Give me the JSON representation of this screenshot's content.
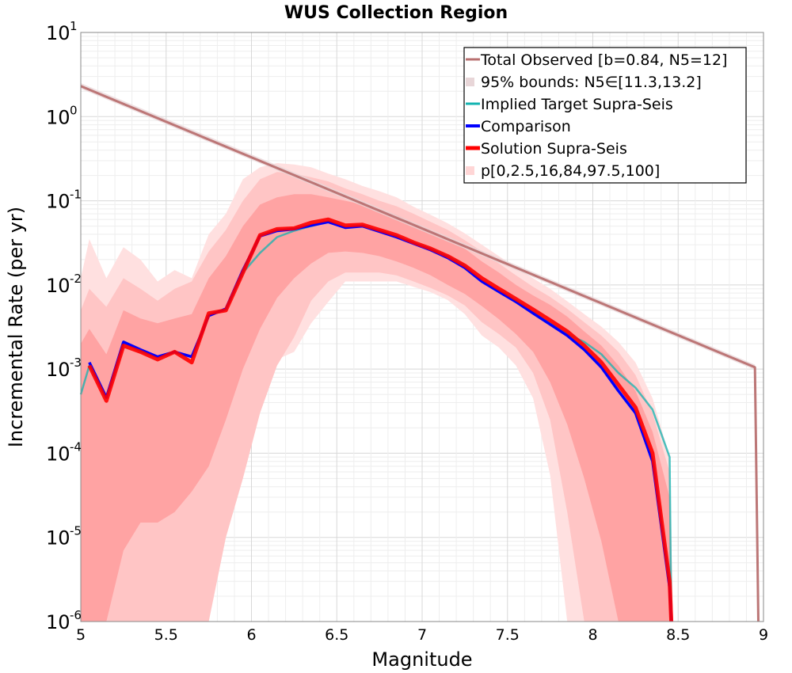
{
  "chart_data": {
    "type": "line",
    "title": "WUS Collection Region",
    "xlabel": "Magnitude",
    "ylabel": "Incremental Rate (per yr)",
    "xlim": [
      5,
      9
    ],
    "ylim": [
      1e-06,
      10
    ],
    "yscale": "log",
    "grid": true,
    "legend_position": "top-right",
    "x_ticks": [
      "5",
      "5.5",
      "6",
      "6.5",
      "7",
      "7.5",
      "8",
      "8.5",
      "9"
    ],
    "y_ticks": [
      {
        "base": "10",
        "exp": "-6"
      },
      {
        "base": "10",
        "exp": "-5"
      },
      {
        "base": "10",
        "exp": "-4"
      },
      {
        "base": "10",
        "exp": "-3"
      },
      {
        "base": "10",
        "exp": "-2"
      },
      {
        "base": "10",
        "exp": "-1"
      },
      {
        "base": "10",
        "exp": "0"
      },
      {
        "base": "10",
        "exp": "1"
      }
    ],
    "series": [
      {
        "name": "Total Observed [b=0.84, N5=12]",
        "kind": "line",
        "color": "#b87070",
        "points": [
          [
            5.0,
            2.3
          ],
          [
            8.95,
            0.00105
          ],
          [
            8.97,
            1e-06
          ]
        ]
      },
      {
        "name": "95% bounds: N5∈[11.3,13.2]",
        "kind": "band",
        "color": "#e8d6d8",
        "lower": [
          [
            5.0,
            2.15
          ],
          [
            8.95,
            0.00098
          ]
        ],
        "upper": [
          [
            5.0,
            2.5
          ],
          [
            8.95,
            0.00113
          ]
        ]
      },
      {
        "name": "Implied Target Supra-Seis",
        "kind": "line",
        "color": "#12b3b0",
        "points": [
          [
            5.0,
            0.0005
          ],
          [
            5.05,
            0.0011
          ],
          [
            5.15,
            0.00046
          ],
          [
            5.25,
            0.0021
          ],
          [
            5.35,
            0.0016
          ],
          [
            5.45,
            0.0014
          ],
          [
            5.55,
            0.0016
          ],
          [
            5.65,
            0.0014
          ],
          [
            5.75,
            0.0043
          ],
          [
            5.85,
            0.0052
          ],
          [
            5.95,
            0.014
          ],
          [
            6.05,
            0.024
          ],
          [
            6.15,
            0.037
          ],
          [
            6.25,
            0.044
          ],
          [
            6.35,
            0.05
          ],
          [
            6.45,
            0.056
          ],
          [
            6.55,
            0.048
          ],
          [
            6.65,
            0.05
          ],
          [
            6.75,
            0.043
          ],
          [
            6.85,
            0.038
          ],
          [
            6.95,
            0.031
          ],
          [
            7.05,
            0.027
          ],
          [
            7.15,
            0.022
          ],
          [
            7.25,
            0.017
          ],
          [
            7.35,
            0.011
          ],
          [
            7.45,
            0.0086
          ],
          [
            7.55,
            0.0066
          ],
          [
            7.65,
            0.0047
          ],
          [
            7.75,
            0.0035
          ],
          [
            7.85,
            0.0026
          ],
          [
            7.95,
            0.0021
          ],
          [
            8.05,
            0.0015
          ],
          [
            8.15,
            0.0009
          ],
          [
            8.25,
            0.0006
          ],
          [
            8.35,
            0.00033
          ],
          [
            8.45,
            9e-05
          ],
          [
            8.46,
            1e-06
          ]
        ]
      },
      {
        "name": "Comparison",
        "kind": "line",
        "color": "#0000ff",
        "points": [
          [
            5.05,
            0.0012
          ],
          [
            5.15,
            0.00046
          ],
          [
            5.25,
            0.0021
          ],
          [
            5.35,
            0.0017
          ],
          [
            5.45,
            0.0014
          ],
          [
            5.55,
            0.0016
          ],
          [
            5.65,
            0.0014
          ],
          [
            5.75,
            0.0043
          ],
          [
            5.85,
            0.0052
          ],
          [
            5.95,
            0.015
          ],
          [
            6.05,
            0.038
          ],
          [
            6.15,
            0.044
          ],
          [
            6.25,
            0.046
          ],
          [
            6.35,
            0.051
          ],
          [
            6.45,
            0.056
          ],
          [
            6.55,
            0.048
          ],
          [
            6.65,
            0.05
          ],
          [
            6.75,
            0.043
          ],
          [
            6.85,
            0.037
          ],
          [
            6.95,
            0.031
          ],
          [
            7.05,
            0.026
          ],
          [
            7.15,
            0.021
          ],
          [
            7.25,
            0.016
          ],
          [
            7.35,
            0.011
          ],
          [
            7.45,
            0.0083
          ],
          [
            7.55,
            0.0063
          ],
          [
            7.65,
            0.0046
          ],
          [
            7.75,
            0.0034
          ],
          [
            7.85,
            0.0025
          ],
          [
            7.95,
            0.0017
          ],
          [
            8.05,
            0.00105
          ],
          [
            8.15,
            0.00055
          ],
          [
            8.25,
            0.0003
          ],
          [
            8.35,
            8e-05
          ],
          [
            8.45,
            2.5e-06
          ],
          [
            8.46,
            1e-06
          ]
        ]
      },
      {
        "name": "Solution Supra-Seis",
        "kind": "line",
        "color": "#ff0000",
        "points": [
          [
            5.05,
            0.0011
          ],
          [
            5.15,
            0.00042
          ],
          [
            5.25,
            0.0019
          ],
          [
            5.35,
            0.0016
          ],
          [
            5.45,
            0.0013
          ],
          [
            5.55,
            0.0016
          ],
          [
            5.65,
            0.0012
          ],
          [
            5.75,
            0.0046
          ],
          [
            5.85,
            0.005
          ],
          [
            5.95,
            0.014
          ],
          [
            6.05,
            0.039
          ],
          [
            6.15,
            0.046
          ],
          [
            6.25,
            0.047
          ],
          [
            6.35,
            0.055
          ],
          [
            6.45,
            0.06
          ],
          [
            6.55,
            0.051
          ],
          [
            6.65,
            0.052
          ],
          [
            6.75,
            0.045
          ],
          [
            6.85,
            0.039
          ],
          [
            6.95,
            0.032
          ],
          [
            7.05,
            0.027
          ],
          [
            7.15,
            0.022
          ],
          [
            7.25,
            0.017
          ],
          [
            7.35,
            0.012
          ],
          [
            7.45,
            0.009
          ],
          [
            7.55,
            0.0068
          ],
          [
            7.65,
            0.0051
          ],
          [
            7.75,
            0.0038
          ],
          [
            7.85,
            0.0028
          ],
          [
            7.95,
            0.0019
          ],
          [
            8.05,
            0.0012
          ],
          [
            8.15,
            0.00065
          ],
          [
            8.25,
            0.00035
          ],
          [
            8.35,
            0.0001
          ],
          [
            8.45,
            3e-06
          ],
          [
            8.46,
            1e-06
          ]
        ]
      },
      {
        "name": "p[0,2.5,16,84,97.5,100]",
        "kind": "percentile-bands",
        "color": "#ff9999",
        "x": [
          5.0,
          5.05,
          5.15,
          5.25,
          5.35,
          5.45,
          5.55,
          5.65,
          5.75,
          5.85,
          5.95,
          6.05,
          6.15,
          6.25,
          6.35,
          6.45,
          6.55,
          6.65,
          6.75,
          6.85,
          6.95,
          7.05,
          7.15,
          7.25,
          7.35,
          7.45,
          7.55,
          7.65,
          7.75,
          7.85,
          7.95,
          8.05,
          8.15,
          8.25,
          8.35,
          8.45,
          8.47
        ],
        "p0": [
          1e-06,
          1e-06,
          1e-06,
          1e-06,
          1e-06,
          1e-06,
          1e-06,
          4.5e-06,
          4.5e-06,
          8e-05,
          0.0003,
          0.0009,
          0.0013,
          0.0016,
          0.0035,
          0.0063,
          0.011,
          0.011,
          0.011,
          0.011,
          0.0095,
          0.0082,
          0.0066,
          0.0045,
          0.0025,
          0.0018,
          0.0011,
          0.00045,
          5.5e-05,
          1e-06,
          1e-06,
          1e-06,
          1e-06,
          1e-06,
          1e-06,
          1e-06,
          1e-06
        ],
        "p2_5": [
          1e-06,
          1e-06,
          1e-06,
          1e-06,
          1e-06,
          1e-06,
          1e-06,
          1e-06,
          1e-06,
          1e-05,
          5e-05,
          0.0003,
          0.0011,
          0.0024,
          0.0065,
          0.011,
          0.014,
          0.014,
          0.014,
          0.013,
          0.011,
          0.0092,
          0.0075,
          0.0057,
          0.0036,
          0.0026,
          0.0018,
          0.0009,
          0.00025,
          2e-05,
          1e-06,
          1e-06,
          1e-06,
          1e-06,
          1e-06,
          1e-06,
          1e-06
        ],
        "p16": [
          1e-06,
          1e-06,
          1e-06,
          7e-06,
          1.5e-05,
          1.5e-05,
          2e-05,
          3.5e-05,
          7e-05,
          0.00025,
          0.001,
          0.003,
          0.007,
          0.012,
          0.018,
          0.024,
          0.025,
          0.024,
          0.022,
          0.019,
          0.016,
          0.013,
          0.01,
          0.0078,
          0.0056,
          0.0039,
          0.0026,
          0.0016,
          0.0007,
          0.00022,
          5e-05,
          9e-06,
          1e-06,
          1e-06,
          1e-06,
          1e-06,
          1e-06
        ],
        "p84": [
          0.002,
          0.003,
          0.0015,
          0.005,
          0.004,
          0.0035,
          0.004,
          0.0045,
          0.012,
          0.022,
          0.05,
          0.09,
          0.11,
          0.12,
          0.12,
          0.11,
          0.1,
          0.09,
          0.08,
          0.068,
          0.055,
          0.045,
          0.036,
          0.027,
          0.019,
          0.014,
          0.01,
          0.0075,
          0.0058,
          0.0042,
          0.0028,
          0.0019,
          0.0011,
          0.00055,
          0.00018,
          3e-05,
          1e-06
        ],
        "p97_5": [
          0.005,
          0.009,
          0.0055,
          0.012,
          0.009,
          0.0065,
          0.009,
          0.011,
          0.025,
          0.045,
          0.1,
          0.18,
          0.22,
          0.21,
          0.19,
          0.17,
          0.14,
          0.12,
          0.1,
          0.086,
          0.07,
          0.056,
          0.045,
          0.034,
          0.025,
          0.018,
          0.013,
          0.0095,
          0.0072,
          0.0052,
          0.0036,
          0.0025,
          0.0016,
          0.00085,
          0.0003,
          6e-05,
          1e-06
        ],
        "p100": [
          0.012,
          0.035,
          0.012,
          0.028,
          0.02,
          0.011,
          0.015,
          0.012,
          0.04,
          0.07,
          0.18,
          0.25,
          0.28,
          0.27,
          0.25,
          0.21,
          0.18,
          0.15,
          0.13,
          0.11,
          0.085,
          0.068,
          0.054,
          0.041,
          0.03,
          0.022,
          0.016,
          0.012,
          0.009,
          0.0064,
          0.0045,
          0.0032,
          0.0021,
          0.0012,
          0.00045,
          9e-05,
          1e-06
        ]
      }
    ]
  }
}
